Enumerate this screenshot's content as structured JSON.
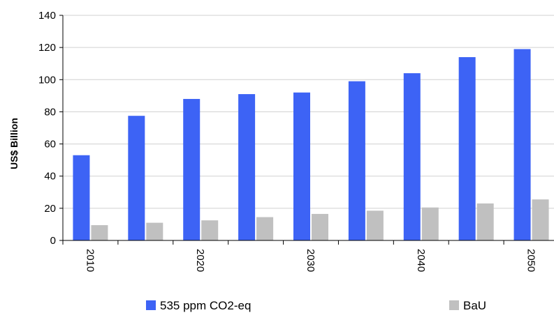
{
  "chart_data": {
    "type": "bar",
    "title": "",
    "xlabel": "",
    "ylabel": "US$ Billion",
    "ylim": [
      0,
      140
    ],
    "yticks": [
      0,
      20,
      40,
      60,
      80,
      100,
      120,
      140
    ],
    "grid": true,
    "legend_position": "bottom",
    "categories": [
      "2010",
      "2015",
      "2020",
      "2025",
      "2030",
      "2035",
      "2040",
      "2045",
      "2050"
    ],
    "x_tick_labels": [
      "2010",
      "",
      "2020",
      "",
      "2030",
      "",
      "2040",
      "",
      "2050"
    ],
    "series": [
      {
        "name": "535 ppm CO2-eq",
        "color": "#3d63f5",
        "values": [
          53,
          77.5,
          88,
          91,
          92,
          99,
          104,
          114,
          119
        ]
      },
      {
        "name": "BaU",
        "color": "#c0c0c0",
        "values": [
          9.5,
          11,
          12.5,
          14.5,
          16.5,
          18.5,
          20.5,
          23,
          25.5
        ]
      }
    ]
  }
}
